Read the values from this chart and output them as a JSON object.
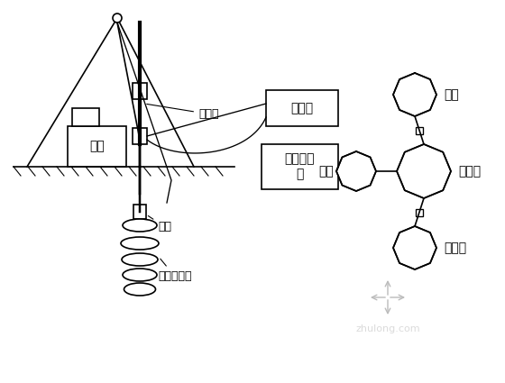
{
  "bg_color": "#ffffff",
  "line_color": "#000000",
  "line_width": 1.2,
  "labels": {
    "drill": "钻机",
    "nozzle": "喷头",
    "grout_pipe": "注浆管",
    "jet_body": "旋喷固结体",
    "air_comp": "空压机",
    "pump": "高压泥浆\n泵",
    "tank": "浆桶",
    "water_box": "水箱",
    "mixer": "搅拌机",
    "cement": "水泥仓",
    "watermark": "zhulong.com"
  },
  "font_size": 10,
  "small_font": 8
}
